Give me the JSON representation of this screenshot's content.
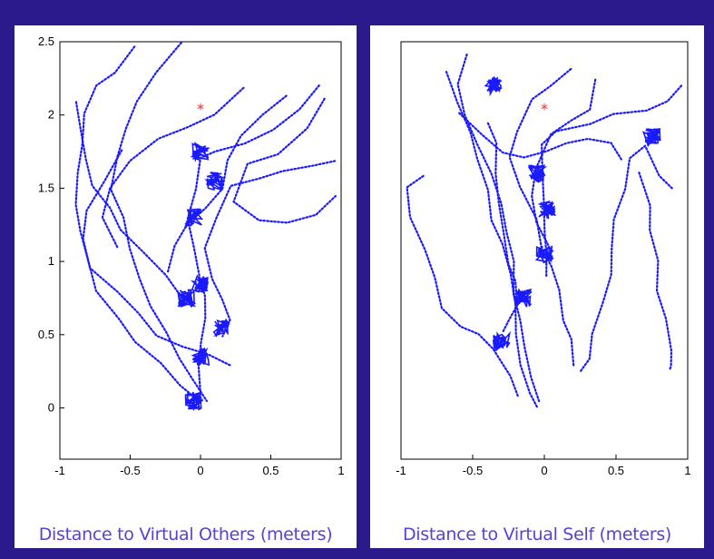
{
  "colors": {
    "frame": "#2a1a8c",
    "trajectory": "#1a1aff",
    "marker": "#e03030",
    "caption": "#5b3fd6"
  },
  "chart_data": [
    {
      "type": "scatter",
      "xlabel": "Distance to Virtual Others (meters)",
      "xlim": [
        -1,
        1
      ],
      "ylim": [
        -0.35,
        2.5
      ],
      "xticks": [
        "-1",
        "-0.5",
        "0",
        "0.5",
        "1"
      ],
      "yticks": [
        "0",
        "0.5",
        "1",
        "1.5",
        "2",
        "2.5"
      ],
      "grid": false,
      "marker": {
        "x": 0,
        "y": 2.05,
        "symbol": "*"
      },
      "trajectories": [
        [
          [
            -0.45,
            2.45
          ],
          [
            -0.6,
            2.3
          ],
          [
            -0.75,
            2.2
          ],
          [
            -0.82,
            2.0
          ],
          [
            -0.85,
            1.8
          ],
          [
            -0.88,
            1.6
          ],
          [
            -0.9,
            1.4
          ],
          [
            -0.85,
            1.2
          ],
          [
            -0.8,
            1.0
          ],
          [
            -0.75,
            0.8
          ],
          [
            -0.6,
            0.6
          ],
          [
            -0.45,
            0.45
          ],
          [
            -0.3,
            0.3
          ],
          [
            -0.15,
            0.15
          ],
          [
            -0.05,
            0.05
          ],
          [
            0.0,
            0.0
          ]
        ],
        [
          [
            -0.15,
            2.5
          ],
          [
            -0.3,
            2.3
          ],
          [
            -0.45,
            2.1
          ],
          [
            -0.55,
            1.9
          ],
          [
            -0.6,
            1.7
          ],
          [
            -0.62,
            1.5
          ],
          [
            -0.55,
            1.3
          ],
          [
            -0.5,
            1.1
          ],
          [
            -0.45,
            0.9
          ],
          [
            -0.35,
            0.7
          ],
          [
            -0.25,
            0.5
          ],
          [
            -0.15,
            0.35
          ],
          [
            -0.05,
            0.2
          ],
          [
            0.05,
            0.05
          ]
        ],
        [
          [
            0.85,
            2.2
          ],
          [
            0.7,
            2.05
          ],
          [
            0.5,
            1.9
          ],
          [
            0.3,
            1.8
          ],
          [
            0.1,
            1.75
          ],
          [
            0.0,
            1.7
          ],
          [
            -0.05,
            1.5
          ],
          [
            -0.1,
            1.3
          ],
          [
            -0.05,
            1.1
          ],
          [
            0.0,
            0.9
          ],
          [
            0.02,
            0.75
          ],
          [
            0.05,
            0.6
          ],
          [
            0.02,
            0.45
          ],
          [
            0.0,
            0.3
          ],
          [
            -0.02,
            0.1
          ]
        ],
        [
          [
            0.95,
            1.7
          ],
          [
            0.8,
            1.65
          ],
          [
            0.6,
            1.6
          ],
          [
            0.4,
            1.55
          ],
          [
            0.2,
            1.5
          ],
          [
            0.1,
            1.3
          ],
          [
            0.05,
            1.1
          ],
          [
            0.1,
            0.9
          ],
          [
            0.15,
            0.75
          ],
          [
            0.2,
            0.6
          ],
          [
            0.15,
            0.5
          ]
        ],
        [
          [
            -0.9,
            2.1
          ],
          [
            -0.85,
            1.9
          ],
          [
            -0.8,
            1.7
          ],
          [
            -0.75,
            1.5
          ],
          [
            -0.65,
            1.35
          ],
          [
            -0.55,
            1.2
          ],
          [
            -0.4,
            1.05
          ],
          [
            -0.25,
            0.9
          ],
          [
            -0.15,
            0.8
          ],
          [
            -0.05,
            0.7
          ]
        ],
        [
          [
            0.9,
            2.1
          ],
          [
            0.75,
            1.9
          ],
          [
            0.55,
            1.75
          ],
          [
            0.35,
            1.65
          ],
          [
            0.25,
            1.4
          ],
          [
            0.4,
            1.3
          ],
          [
            0.6,
            1.25
          ],
          [
            0.8,
            1.3
          ],
          [
            0.95,
            1.45
          ]
        ],
        [
          [
            -0.55,
            1.75
          ],
          [
            -0.7,
            1.55
          ],
          [
            -0.8,
            1.35
          ],
          [
            -0.85,
            1.15
          ],
          [
            -0.78,
            0.95
          ],
          [
            -0.6,
            0.8
          ],
          [
            -0.45,
            0.65
          ],
          [
            -0.3,
            0.5
          ],
          [
            -0.15,
            0.4
          ],
          [
            0.05,
            0.35
          ],
          [
            0.2,
            0.3
          ]
        ],
        [
          [
            0.3,
            2.2
          ],
          [
            0.1,
            2.0
          ],
          [
            -0.1,
            1.9
          ],
          [
            -0.3,
            1.85
          ],
          [
            -0.5,
            1.7
          ],
          [
            -0.65,
            1.5
          ],
          [
            -0.7,
            1.3
          ],
          [
            -0.6,
            1.1
          ]
        ],
        [
          [
            0.6,
            2.15
          ],
          [
            0.45,
            2.0
          ],
          [
            0.3,
            1.85
          ],
          [
            0.2,
            1.7
          ],
          [
            0.15,
            1.5
          ],
          [
            0.05,
            1.35
          ],
          [
            -0.1,
            1.25
          ],
          [
            -0.2,
            1.1
          ],
          [
            -0.25,
            0.95
          ]
        ]
      ],
      "clusters": [
        [
          -0.05,
          1.3
        ],
        [
          0.0,
          0.85
        ],
        [
          -0.1,
          0.75
        ],
        [
          0.15,
          0.55
        ],
        [
          0.0,
          0.35
        ],
        [
          -0.05,
          0.05
        ],
        [
          0.1,
          1.55
        ],
        [
          0.0,
          1.75
        ]
      ]
    },
    {
      "type": "scatter",
      "xlabel": "Distance to Virtual Self (meters)",
      "xlim": [
        -1,
        1
      ],
      "ylim": [
        -0.35,
        2.5
      ],
      "xticks": [
        "-1",
        "-0.5",
        "0",
        "0.5",
        "1"
      ],
      "yticks": [],
      "grid": false,
      "marker": {
        "x": 0,
        "y": 2.05,
        "symbol": "*"
      },
      "trajectories": [
        [
          [
            -0.55,
            2.4
          ],
          [
            -0.6,
            2.2
          ],
          [
            -0.55,
            2.0
          ],
          [
            -0.45,
            1.8
          ],
          [
            -0.35,
            1.6
          ],
          [
            -0.3,
            1.4
          ],
          [
            -0.25,
            1.2
          ],
          [
            -0.2,
            1.0
          ],
          [
            -0.2,
            0.8
          ],
          [
            -0.18,
            0.6
          ],
          [
            -0.15,
            0.4
          ],
          [
            -0.1,
            0.2
          ],
          [
            -0.05,
            0.05
          ]
        ],
        [
          [
            -0.7,
            2.3
          ],
          [
            -0.6,
            2.1
          ],
          [
            -0.5,
            1.9
          ],
          [
            -0.45,
            1.7
          ],
          [
            -0.4,
            1.5
          ],
          [
            -0.35,
            1.3
          ],
          [
            -0.3,
            1.1
          ],
          [
            -0.25,
            0.9
          ],
          [
            -0.22,
            0.7
          ],
          [
            -0.2,
            0.5
          ],
          [
            -0.15,
            0.3
          ],
          [
            -0.1,
            0.1
          ],
          [
            -0.05,
            0.0
          ]
        ],
        [
          [
            0.95,
            2.2
          ],
          [
            0.85,
            2.1
          ],
          [
            0.7,
            2.05
          ],
          [
            0.5,
            2.0
          ],
          [
            0.3,
            1.95
          ],
          [
            0.1,
            1.9
          ],
          [
            0.0,
            1.8
          ],
          [
            -0.02,
            1.6
          ],
          [
            0.0,
            1.4
          ],
          [
            0.02,
            1.2
          ],
          [
            0.0,
            1.05
          ],
          [
            0.02,
            0.9
          ]
        ],
        [
          [
            -0.85,
            1.6
          ],
          [
            -0.95,
            1.5
          ],
          [
            -0.92,
            1.3
          ],
          [
            -0.85,
            1.1
          ],
          [
            -0.78,
            0.9
          ],
          [
            -0.72,
            0.7
          ],
          [
            -0.6,
            0.55
          ],
          [
            -0.45,
            0.5
          ],
          [
            -0.35,
            0.4
          ],
          [
            -0.3,
            0.3
          ],
          [
            -0.25,
            0.2
          ],
          [
            -0.2,
            0.1
          ]
        ],
        [
          [
            0.9,
            1.5
          ],
          [
            0.8,
            1.6
          ],
          [
            0.7,
            1.8
          ],
          [
            0.6,
            1.7
          ],
          [
            0.55,
            1.5
          ],
          [
            0.5,
            1.3
          ],
          [
            0.48,
            1.1
          ],
          [
            0.45,
            0.9
          ],
          [
            0.4,
            0.7
          ],
          [
            0.35,
            0.5
          ],
          [
            0.3,
            0.35
          ],
          [
            0.25,
            0.25
          ]
        ],
        [
          [
            0.65,
            1.6
          ],
          [
            0.72,
            1.4
          ],
          [
            0.75,
            1.2
          ],
          [
            0.78,
            1.0
          ],
          [
            0.8,
            0.8
          ],
          [
            0.85,
            0.6
          ],
          [
            0.88,
            0.4
          ],
          [
            0.9,
            0.3
          ],
          [
            0.88,
            0.25
          ]
        ],
        [
          [
            -0.6,
            2.0
          ],
          [
            -0.45,
            1.85
          ],
          [
            -0.3,
            1.75
          ],
          [
            -0.15,
            1.7
          ],
          [
            0.0,
            1.75
          ],
          [
            0.15,
            1.8
          ],
          [
            0.3,
            1.85
          ],
          [
            0.45,
            1.8
          ],
          [
            0.55,
            1.7
          ]
        ],
        [
          [
            0.2,
            2.3
          ],
          [
            0.05,
            2.2
          ],
          [
            -0.1,
            2.1
          ],
          [
            -0.2,
            1.9
          ],
          [
            -0.25,
            1.7
          ],
          [
            -0.15,
            1.5
          ],
          [
            -0.05,
            1.3
          ],
          [
            0.0,
            1.1
          ],
          [
            0.05,
            0.95
          ],
          [
            0.1,
            0.8
          ],
          [
            0.15,
            0.6
          ],
          [
            0.2,
            0.45
          ],
          [
            0.22,
            0.3
          ]
        ],
        [
          [
            0.35,
            2.25
          ],
          [
            0.3,
            2.05
          ],
          [
            0.2,
            1.95
          ],
          [
            0.05,
            1.85
          ],
          [
            -0.05,
            1.65
          ],
          [
            -0.1,
            1.45
          ],
          [
            -0.05,
            1.25
          ],
          [
            0.05,
            1.05
          ]
        ],
        [
          [
            -0.4,
            1.95
          ],
          [
            -0.35,
            1.8
          ],
          [
            -0.32,
            1.6
          ],
          [
            -0.3,
            1.4
          ],
          [
            -0.28,
            1.2
          ],
          [
            -0.25,
            1.0
          ],
          [
            -0.22,
            0.85
          ],
          [
            -0.2,
            0.7
          ],
          [
            -0.25,
            0.6
          ],
          [
            -0.3,
            0.5
          ]
        ]
      ],
      "clusters": [
        [
          0.0,
          1.05
        ],
        [
          0.02,
          1.35
        ],
        [
          -0.05,
          1.6
        ],
        [
          -0.15,
          0.75
        ],
        [
          -0.3,
          0.45
        ],
        [
          0.75,
          1.85
        ],
        [
          -0.35,
          2.2
        ]
      ]
    }
  ]
}
